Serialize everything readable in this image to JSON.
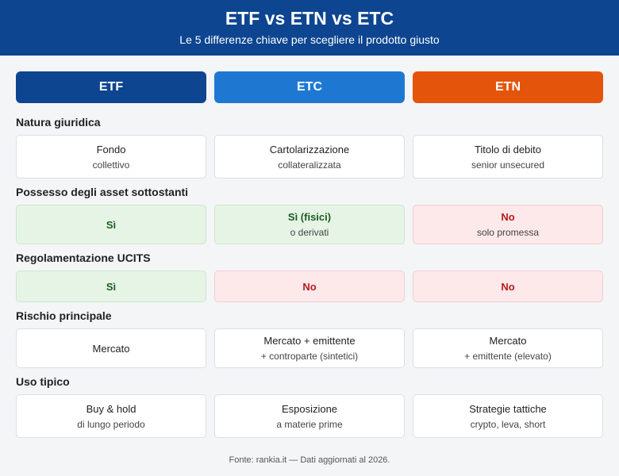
{
  "header": {
    "title": "ETF vs ETN vs ETC",
    "subtitle": "Le 5 differenze chiave per scegliere il prodotto giusto"
  },
  "columns": [
    {
      "label": "ETF",
      "color": "#0d4590"
    },
    {
      "label": "ETC",
      "color": "#1e78d2"
    },
    {
      "label": "ETN",
      "color": "#e5540b"
    }
  ],
  "rows": [
    {
      "label": "Natura giuridica",
      "cells": [
        {
          "main": "Fondo",
          "sub": "collettivo",
          "color": "#ffffff"
        },
        {
          "main": "Cartolarizzazione",
          "sub": "collateralizzata",
          "color": "#ffffff"
        },
        {
          "main": "Titolo di debito",
          "sub": "senior unsecured",
          "color": "#ffffff"
        }
      ]
    },
    {
      "label": "Possesso degli asset sottostanti",
      "cells": [
        {
          "main": "Sì",
          "color": "#e6f4e6"
        },
        {
          "main": "Sì (fisici)",
          "sub": "o derivati",
          "color": "#e6f4e6"
        },
        {
          "main": "No",
          "sub": "solo promessa",
          "color": "#fde8ea"
        }
      ]
    },
    {
      "label": "Regolamentazione UCITS",
      "cells": [
        {
          "main": "Sì",
          "color": "#e6f4e6"
        },
        {
          "main": "No",
          "color": "#fde8ea"
        },
        {
          "main": "No",
          "color": "#fde8ea"
        }
      ]
    },
    {
      "label": "Rischio principale",
      "cells": [
        {
          "main": "Mercato",
          "color": "#ffffff"
        },
        {
          "main": "Mercato + emittente",
          "sub": "+ controparte (sintetici)",
          "color": "#ffffff"
        },
        {
          "main": "Mercato",
          "sub": "+ emittente (elevato)",
          "color": "#ffffff"
        }
      ]
    },
    {
      "label": "Uso tipico",
      "cells": [
        {
          "main": "Buy & hold",
          "sub": "di lungo periodo",
          "color": "#ffffff"
        },
        {
          "main": "Esposizione",
          "sub": "a materie prime",
          "color": "#ffffff"
        },
        {
          "main": "Strategie tattiche",
          "sub": "crypto, leva, short",
          "color": "#ffffff"
        }
      ]
    }
  ],
  "footer": "Fonte: rankia.it — Dati aggiornati al 2026."
}
